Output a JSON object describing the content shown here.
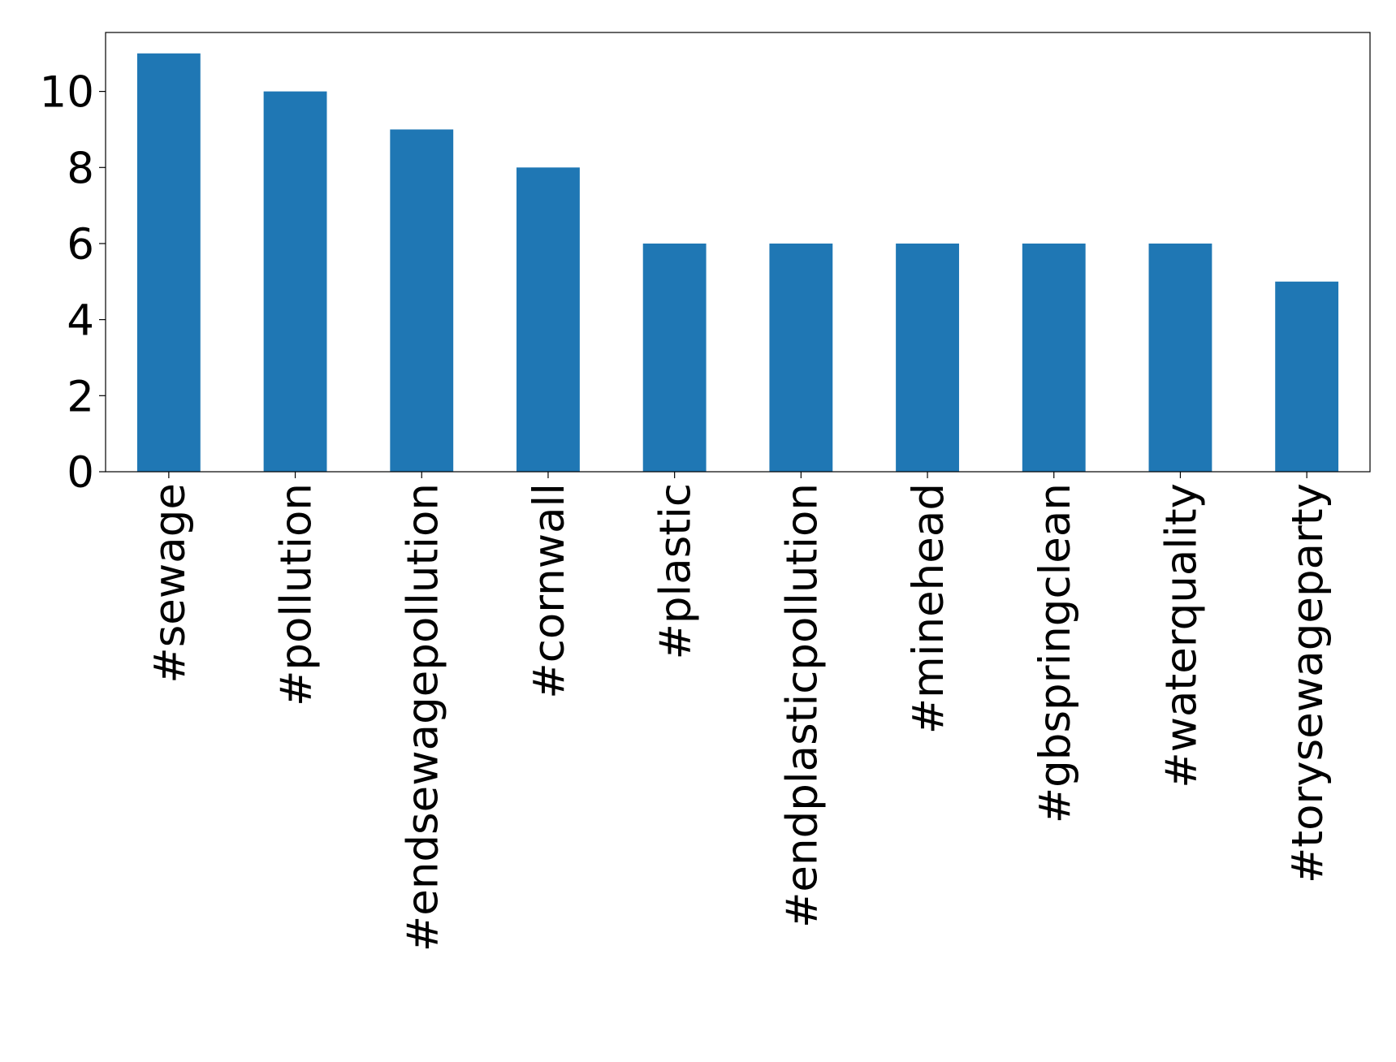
{
  "chart_data": {
    "type": "bar",
    "categories": [
      "#sewage",
      "#pollution",
      "#endsewagepollution",
      "#cornwall",
      "#plastic",
      "#endplasticpollution",
      "#minehead",
      "#gbspringclean",
      "#waterquality",
      "#torysewageparty"
    ],
    "values": [
      11,
      10,
      9,
      8,
      6,
      6,
      6,
      6,
      6,
      5
    ],
    "color": "#1f77b4",
    "ylim": [
      0,
      11.55
    ],
    "yticks": [
      0,
      2,
      4,
      6,
      8,
      10
    ],
    "grid": false
  }
}
